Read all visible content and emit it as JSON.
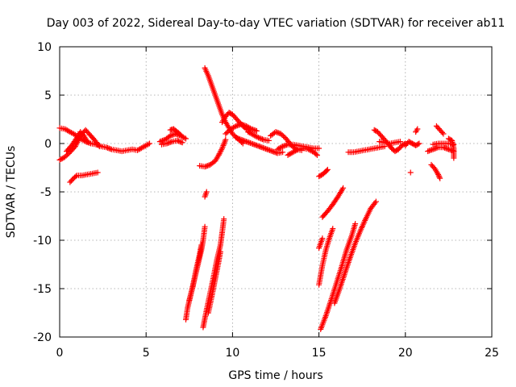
{
  "chart_data": {
    "type": "scatter",
    "title": "Day 003 of 2022, Sidereal Day-to-day VTEC variation (SDTVAR) for receiver ab11",
    "xlabel": "GPS time / hours",
    "ylabel": "SDTVAR / TECUs",
    "xlim": [
      0,
      25
    ],
    "ylim": [
      -20,
      10
    ],
    "xticks": [
      "0",
      "5",
      "10",
      "15",
      "20",
      "25"
    ],
    "yticks": [
      "-20",
      "-15",
      "-10",
      "-5",
      "0",
      "5",
      "10"
    ],
    "grid": true,
    "marker": "+",
    "color": "#ff0000",
    "series": [
      {
        "segments": [
          [
            [
              0.0,
              1.6
            ],
            [
              0.3,
              1.5
            ],
            [
              0.6,
              1.2
            ],
            [
              0.9,
              0.9
            ],
            [
              1.2,
              0.5
            ],
            [
              1.5,
              0.2
            ],
            [
              1.8,
              0.0
            ],
            [
              2.1,
              -0.1
            ],
            [
              2.3,
              -0.2
            ]
          ],
          [
            [
              0.0,
              -1.7
            ],
            [
              0.3,
              -1.4
            ],
            [
              0.6,
              -0.9
            ],
            [
              0.9,
              -0.3
            ],
            [
              1.1,
              0.4
            ],
            [
              1.3,
              1.0
            ],
            [
              1.5,
              1.4
            ],
            [
              1.7,
              1.0
            ],
            [
              2.0,
              0.4
            ],
            [
              2.3,
              -0.3
            ]
          ],
          [
            [
              0.4,
              -0.8
            ],
            [
              0.7,
              -0.2
            ],
            [
              1.0,
              0.6
            ],
            [
              1.2,
              1.2
            ],
            [
              1.4,
              0.8
            ],
            [
              1.6,
              0.2
            ]
          ],
          [
            [
              0.6,
              -4.0
            ],
            [
              0.8,
              -3.6
            ],
            [
              1.0,
              -3.3
            ],
            [
              1.3,
              -3.3
            ],
            [
              1.6,
              -3.2
            ],
            [
              1.9,
              -3.1
            ],
            [
              2.2,
              -3.0
            ]
          ],
          [
            [
              2.4,
              -0.3
            ],
            [
              2.7,
              -0.4
            ],
            [
              3.0,
              -0.6
            ],
            [
              3.3,
              -0.7
            ],
            [
              3.6,
              -0.8
            ],
            [
              3.9,
              -0.7
            ],
            [
              4.2,
              -0.6
            ],
            [
              4.5,
              -0.7
            ],
            [
              4.8,
              -0.4
            ],
            [
              5.2,
              0.0
            ]
          ],
          [
            [
              5.8,
              0.2
            ],
            [
              6.1,
              0.4
            ],
            [
              6.4,
              0.8
            ],
            [
              6.7,
              1.0
            ],
            [
              7.0,
              0.8
            ],
            [
              7.3,
              0.5
            ]
          ],
          [
            [
              5.9,
              -0.1
            ],
            [
              6.2,
              0.0
            ],
            [
              6.5,
              0.2
            ],
            [
              6.8,
              0.3
            ],
            [
              7.1,
              0.1
            ]
          ],
          [
            [
              6.4,
              1.4
            ],
            [
              6.6,
              1.5
            ],
            [
              6.8,
              1.2
            ],
            [
              7.0,
              0.9
            ]
          ],
          [
            [
              8.1,
              -2.3
            ],
            [
              8.4,
              -2.4
            ],
            [
              8.7,
              -2.2
            ],
            [
              9.0,
              -1.8
            ],
            [
              9.2,
              -1.2
            ],
            [
              9.4,
              -0.5
            ],
            [
              9.6,
              0.4
            ]
          ],
          [
            [
              8.4,
              7.8
            ],
            [
              8.6,
              7.0
            ],
            [
              8.8,
              6.0
            ],
            [
              9.0,
              5.0
            ],
            [
              9.2,
              4.0
            ],
            [
              9.4,
              3.0
            ],
            [
              9.6,
              2.2
            ],
            [
              9.8,
              1.6
            ],
            [
              10.0,
              1.0
            ],
            [
              10.3,
              0.5
            ],
            [
              10.6,
              0.0
            ]
          ],
          [
            [
              9.4,
              2.2
            ],
            [
              9.6,
              2.8
            ],
            [
              9.8,
              3.2
            ],
            [
              10.0,
              3.0
            ],
            [
              10.2,
              2.6
            ],
            [
              10.4,
              2.2
            ],
            [
              10.6,
              1.8
            ],
            [
              10.8,
              1.5
            ],
            [
              11.0,
              1.4
            ]
          ],
          [
            [
              9.6,
              1.0
            ],
            [
              9.9,
              1.5
            ],
            [
              10.2,
              1.8
            ],
            [
              10.5,
              2.0
            ],
            [
              10.8,
              1.8
            ],
            [
              11.1,
              1.5
            ],
            [
              11.4,
              1.3
            ]
          ],
          [
            [
              10.2,
              0.6
            ],
            [
              10.5,
              0.4
            ],
            [
              10.8,
              0.2
            ],
            [
              11.1,
              0.0
            ],
            [
              11.4,
              -0.2
            ],
            [
              11.7,
              -0.4
            ],
            [
              12.0,
              -0.6
            ],
            [
              12.3,
              -0.8
            ],
            [
              12.6,
              -1.0
            ],
            [
              12.9,
              -0.9
            ]
          ],
          [
            [
              10.9,
              1.2
            ],
            [
              11.2,
              0.9
            ],
            [
              11.5,
              0.6
            ],
            [
              11.8,
              0.4
            ],
            [
              12.1,
              0.3
            ]
          ],
          [
            [
              12.2,
              0.8
            ],
            [
              12.5,
              1.2
            ],
            [
              12.8,
              1.0
            ],
            [
              13.1,
              0.5
            ],
            [
              13.4,
              -0.2
            ],
            [
              13.7,
              -0.6
            ],
            [
              14.0,
              -0.7
            ]
          ],
          [
            [
              12.6,
              -0.6
            ],
            [
              12.9,
              -0.3
            ],
            [
              13.2,
              -0.1
            ],
            [
              13.5,
              -0.1
            ],
            [
              13.8,
              -0.2
            ],
            [
              14.1,
              -0.3
            ],
            [
              14.4,
              -0.4
            ],
            [
              14.7,
              -0.5
            ],
            [
              15.0,
              -0.5
            ]
          ],
          [
            [
              13.2,
              -1.2
            ],
            [
              13.5,
              -0.9
            ],
            [
              13.8,
              -0.6
            ],
            [
              14.1,
              -0.5
            ],
            [
              14.4,
              -0.6
            ],
            [
              14.7,
              -0.9
            ],
            [
              14.9,
              -1.2
            ]
          ],
          [
            [
              15.0,
              -3.4
            ],
            [
              15.2,
              -3.2
            ],
            [
              15.4,
              -2.9
            ],
            [
              15.5,
              -2.7
            ]
          ],
          [
            [
              16.7,
              -0.9
            ],
            [
              17.0,
              -0.9
            ],
            [
              17.3,
              -0.8
            ],
            [
              17.6,
              -0.7
            ],
            [
              17.9,
              -0.6
            ],
            [
              18.2,
              -0.5
            ],
            [
              18.5,
              -0.4
            ],
            [
              18.8,
              -0.3
            ]
          ],
          [
            [
              18.2,
              1.4
            ],
            [
              18.4,
              1.2
            ],
            [
              18.6,
              0.8
            ],
            [
              18.8,
              0.4
            ],
            [
              19.0,
              0.0
            ],
            [
              19.2,
              -0.5
            ],
            [
              19.4,
              -0.8
            ],
            [
              19.6,
              -0.6
            ],
            [
              19.8,
              -0.2
            ],
            [
              20.0,
              0.0
            ]
          ],
          [
            [
              18.5,
              0.2
            ],
            [
              18.8,
              0.1
            ],
            [
              19.1,
              0.0
            ],
            [
              19.4,
              0.1
            ],
            [
              19.7,
              0.2
            ]
          ],
          [
            [
              20.0,
              -0.2
            ],
            [
              20.2,
              0.2
            ],
            [
              20.4,
              0.0
            ],
            [
              20.6,
              -0.2
            ],
            [
              20.8,
              0.0
            ]
          ],
          [
            [
              20.6,
              1.2
            ],
            [
              20.7,
              1.5
            ]
          ],
          [
            [
              20.3,
              -3.0
            ]
          ],
          [
            [
              21.3,
              -0.8
            ],
            [
              21.6,
              -0.6
            ],
            [
              21.9,
              -0.4
            ],
            [
              22.2,
              -0.4
            ],
            [
              22.5,
              -0.6
            ],
            [
              22.8,
              -0.8
            ]
          ],
          [
            [
              21.5,
              -2.2
            ],
            [
              21.7,
              -2.6
            ],
            [
              21.9,
              -3.2
            ],
            [
              22.0,
              -3.6
            ]
          ],
          [
            [
              21.6,
              -0.1
            ],
            [
              21.9,
              0.0
            ],
            [
              22.2,
              0.0
            ],
            [
              22.5,
              0.0
            ],
            [
              22.8,
              -0.1
            ]
          ],
          [
            [
              21.8,
              1.8
            ],
            [
              22.0,
              1.4
            ],
            [
              22.2,
              1.0
            ]
          ],
          [
            [
              22.5,
              0.5
            ],
            [
              22.7,
              0.3
            ],
            [
              22.8,
              -0.5
            ],
            [
              22.8,
              -1.5
            ]
          ],
          [
            [
              7.3,
              -18.2
            ],
            [
              7.4,
              -17.0
            ],
            [
              7.6,
              -15.5
            ],
            [
              7.8,
              -14.0
            ],
            [
              8.0,
              -12.5
            ],
            [
              8.2,
              -11.0
            ],
            [
              8.3,
              -10.0
            ],
            [
              8.4,
              -8.6
            ]
          ],
          [
            [
              7.5,
              -16.2
            ],
            [
              7.7,
              -14.8
            ],
            [
              7.9,
              -13.0
            ],
            [
              8.1,
              -11.4
            ],
            [
              8.2,
              -10.5
            ]
          ],
          [
            [
              8.4,
              -5.5
            ],
            [
              8.5,
              -5.0
            ]
          ],
          [
            [
              8.3,
              -19.0
            ],
            [
              8.5,
              -17.2
            ],
            [
              8.7,
              -15.5
            ],
            [
              8.9,
              -13.8
            ],
            [
              9.1,
              -12.0
            ],
            [
              9.3,
              -10.5
            ],
            [
              9.4,
              -9.2
            ],
            [
              9.5,
              -7.8
            ]
          ],
          [
            [
              8.6,
              -17.5
            ],
            [
              8.8,
              -15.8
            ],
            [
              9.0,
              -14.0
            ],
            [
              9.2,
              -12.2
            ],
            [
              9.3,
              -11.2
            ]
          ],
          [
            [
              15.1,
              -19.2
            ],
            [
              15.4,
              -17.8
            ],
            [
              15.7,
              -16.2
            ],
            [
              16.0,
              -14.5
            ],
            [
              16.3,
              -12.8
            ],
            [
              16.6,
              -11.0
            ],
            [
              16.9,
              -9.5
            ],
            [
              17.1,
              -8.3
            ]
          ],
          [
            [
              15.0,
              -14.6
            ],
            [
              15.2,
              -12.6
            ],
            [
              15.4,
              -11.0
            ],
            [
              15.6,
              -9.8
            ],
            [
              15.8,
              -8.8
            ]
          ],
          [
            [
              15.0,
              -10.8
            ],
            [
              15.2,
              -9.8
            ]
          ],
          [
            [
              15.2,
              -7.6
            ],
            [
              15.5,
              -7.0
            ],
            [
              15.8,
              -6.3
            ],
            [
              16.1,
              -5.5
            ],
            [
              16.4,
              -4.6
            ]
          ],
          [
            [
              15.9,
              -16.5
            ],
            [
              16.2,
              -15.0
            ],
            [
              16.5,
              -13.4
            ],
            [
              16.8,
              -11.8
            ],
            [
              17.1,
              -10.3
            ],
            [
              17.4,
              -9.0
            ],
            [
              17.7,
              -7.8
            ],
            [
              18.0,
              -6.7
            ],
            [
              18.3,
              -6.0
            ]
          ]
        ]
      }
    ]
  }
}
